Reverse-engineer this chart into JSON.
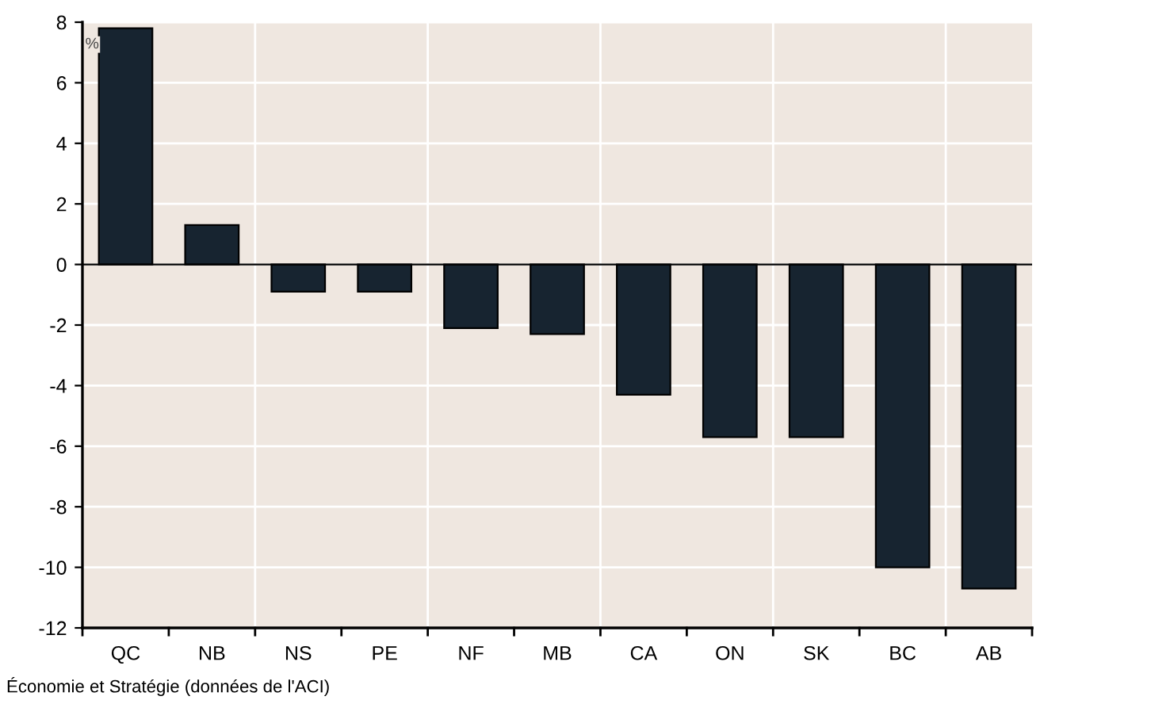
{
  "chart_data": {
    "type": "bar",
    "ylabel": "%",
    "categories": [
      "QC",
      "NB",
      "NS",
      "PE",
      "NF",
      "MB",
      "CA",
      "ON",
      "SK",
      "BC",
      "AB"
    ],
    "values": [
      7.8,
      1.3,
      -0.9,
      -0.9,
      -2.1,
      -2.3,
      -4.3,
      -5.7,
      -5.7,
      -10.0,
      -10.7
    ],
    "color": "#172430",
    "ylim": [
      -12,
      8
    ],
    "yticks": [
      -12,
      -10,
      -8,
      -6,
      -4,
      -2,
      0,
      2,
      4,
      6,
      8
    ],
    "grid": true,
    "ref_lines": [
      {
        "axis": "y",
        "value": 0,
        "color": "#000000"
      }
    ],
    "annotations": [
      "Économie et Stratégie (données de l'ACI)"
    ]
  }
}
